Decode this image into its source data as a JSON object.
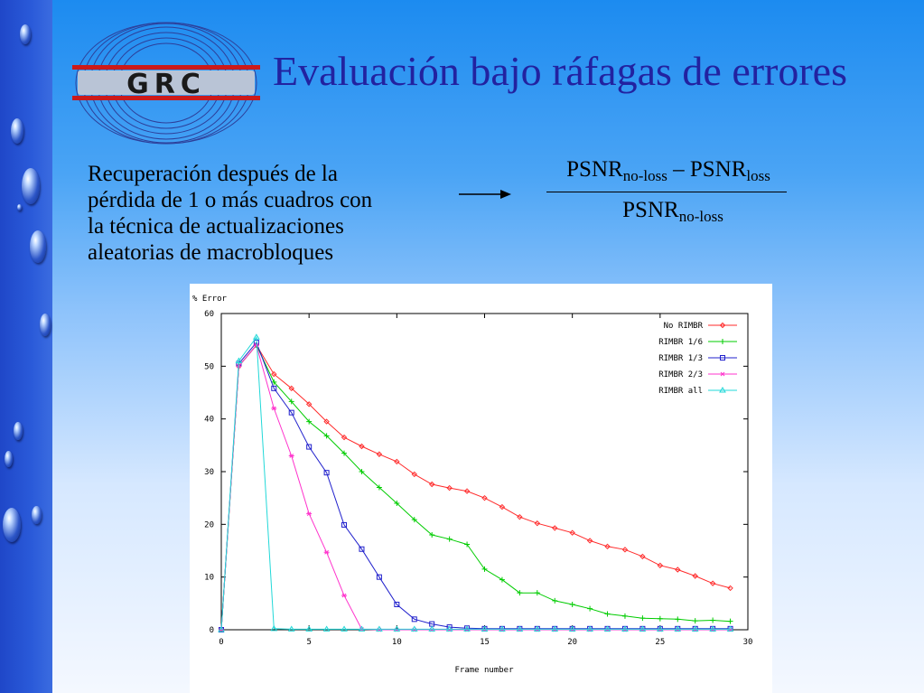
{
  "slide": {
    "title": "Evaluación bajo ráfagas de errores",
    "logo_text": "GRC",
    "body": [
      "Recuperación después de la",
      "pérdida de 1 o más cuadros con",
      "la técnica de actualizaciones",
      "aleatorias de macrobloques"
    ],
    "formula": {
      "num_a": "PSNR",
      "num_a_sub": "no-loss",
      "minus": " – ",
      "num_b": "PSNR",
      "num_b_sub": "loss",
      "den": "PSNR",
      "den_sub": "no-loss"
    }
  },
  "chart_data": {
    "type": "line",
    "title": "",
    "ylabel": "% Error",
    "xlabel": "Frame number",
    "xlim": [
      0,
      30
    ],
    "ylim": [
      0,
      60
    ],
    "xticks": [
      0,
      5,
      10,
      15,
      20,
      25,
      30
    ],
    "yticks": [
      0,
      10,
      20,
      30,
      40,
      50,
      60
    ],
    "legend_position": "top-right",
    "x": [
      0,
      1,
      2,
      3,
      4,
      5,
      6,
      7,
      8,
      9,
      10,
      11,
      12,
      13,
      14,
      15,
      16,
      17,
      18,
      19,
      20,
      21,
      22,
      23,
      24,
      25,
      26,
      27,
      28,
      29
    ],
    "series": [
      {
        "name": "No RIMBR",
        "color": "#ff2a2a",
        "marker": "diamond",
        "values": [
          0,
          50,
          54,
          48.5,
          45.8,
          42.8,
          39.5,
          36.5,
          34.8,
          33.3,
          31.9,
          29.5,
          27.6,
          26.9,
          26.3,
          25,
          23.3,
          21.4,
          20.2,
          19.3,
          18.4,
          16.9,
          15.8,
          15.2,
          13.9,
          12.2,
          11.4,
          10.2,
          8.8,
          7.9
        ]
      },
      {
        "name": "RIMBR 1/6",
        "color": "#00cc00",
        "marker": "plus",
        "values": [
          0,
          50,
          54,
          47,
          43.3,
          39.5,
          36.8,
          33.5,
          30,
          27,
          24,
          20.9,
          18,
          17.2,
          16.2,
          11.5,
          9.5,
          7,
          7,
          5.5,
          4.8,
          4,
          3,
          2.6,
          2.2,
          2.1,
          2,
          1.7,
          1.8,
          1.6
        ]
      },
      {
        "name": "RIMBR 1/3",
        "color": "#2020cc",
        "marker": "square",
        "values": [
          0,
          50.5,
          54.5,
          45.8,
          41.2,
          34.7,
          29.8,
          19.9,
          15.3,
          10,
          4.8,
          2,
          1.1,
          0.5,
          0.3,
          0.2,
          0.2,
          0.2,
          0.2,
          0.2,
          0.2,
          0.2,
          0.2,
          0.2,
          0.2,
          0.2,
          0.2,
          0.2,
          0.2,
          0.2
        ]
      },
      {
        "name": "RIMBR 2/3",
        "color": "#ff33cc",
        "marker": "star",
        "values": [
          0,
          50,
          54,
          42,
          33,
          22,
          14.7,
          6.5,
          0.1,
          0,
          0,
          0,
          0,
          0,
          0,
          0,
          0,
          0,
          0,
          0,
          0,
          0,
          0,
          0,
          0,
          0,
          0,
          0,
          0,
          0
        ]
      },
      {
        "name": "RIMBR all",
        "color": "#22d8d8",
        "marker": "triangle",
        "values": [
          0,
          51,
          55.5,
          0.2,
          0.1,
          0.1,
          0.1,
          0.1,
          0.1,
          0.1,
          0.1,
          0.1,
          0.1,
          0.1,
          0.1,
          0.1,
          0.1,
          0.1,
          0.1,
          0.1,
          0.1,
          0.1,
          0.1,
          0.1,
          0.1,
          0.1,
          0.1,
          0.1,
          0.1,
          0.1
        ]
      }
    ]
  }
}
